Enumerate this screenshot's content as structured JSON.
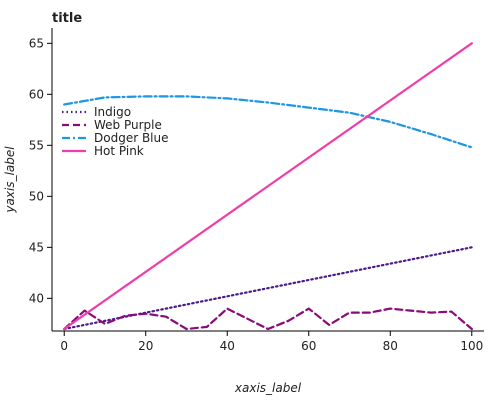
{
  "chart_data": {
    "type": "line",
    "title": "title",
    "xlabel": "xaxis_label",
    "ylabel": "yaxis_label",
    "xlim": [
      -3,
      103
    ],
    "ylim": [
      36.8,
      66.5
    ],
    "x_ticks": [
      0,
      20,
      40,
      60,
      80,
      100
    ],
    "y_ticks": [
      40,
      45,
      50,
      55,
      60,
      65
    ],
    "grid": false,
    "legend_position": "top-left",
    "series": [
      {
        "name": "Indigo",
        "color": "#4b1a8c",
        "dash": "dotted",
        "x": [
          0,
          100
        ],
        "y": [
          37.0,
          45.0
        ]
      },
      {
        "name": "Web Purple",
        "color": "#8b0a7a",
        "dash": "dashed",
        "x": [
          0,
          5,
          10,
          15,
          20,
          25,
          30,
          35,
          40,
          45,
          50,
          55,
          60,
          65,
          70,
          75,
          80,
          85,
          90,
          95,
          100
        ],
        "y": [
          37.0,
          38.8,
          37.5,
          38.3,
          38.5,
          38.2,
          37.0,
          37.2,
          39.0,
          38.0,
          37.0,
          37.8,
          39.0,
          37.4,
          38.6,
          38.6,
          39.0,
          38.8,
          38.6,
          38.7,
          37.0
        ]
      },
      {
        "name": "Dodger Blue",
        "color": "#1e96e0",
        "dash": "dashdot",
        "x": [
          0,
          10,
          20,
          30,
          40,
          50,
          60,
          70,
          80,
          90,
          100
        ],
        "y": [
          59.0,
          59.7,
          59.8,
          59.8,
          59.6,
          59.2,
          58.7,
          58.2,
          57.3,
          56.1,
          54.8
        ]
      },
      {
        "name": "Hot Pink",
        "color": "#ee3ea8",
        "dash": "solid",
        "x": [
          0,
          100
        ],
        "y": [
          37.0,
          65.0
        ]
      }
    ]
  }
}
